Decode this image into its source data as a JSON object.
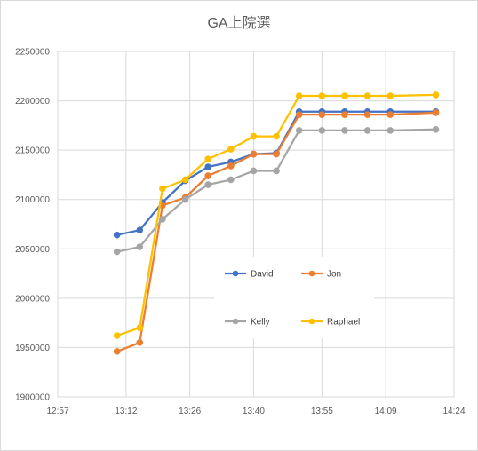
{
  "chart_data": {
    "type": "line",
    "title": "GA上院選",
    "xlabel": "",
    "ylabel": "",
    "x_ticks": [
      "12:57",
      "13:12",
      "13:26",
      "13:40",
      "13:55",
      "14:09",
      "14:24"
    ],
    "y_ticks": [
      "1900000",
      "1950000",
      "2000000",
      "2050000",
      "2100000",
      "2150000",
      "2200000",
      "2250000"
    ],
    "xlim": [
      "12:57",
      "14:24"
    ],
    "ylim": [
      1900000,
      2250000
    ],
    "grid": "horizontal and vertical major gridlines",
    "legend_position": "center",
    "x": [
      "13:10",
      "13:15",
      "13:20",
      "13:25",
      "13:30",
      "13:35",
      "13:40",
      "13:45",
      "13:50",
      "13:55",
      "14:00",
      "14:05",
      "14:10",
      "14:20"
    ],
    "series": [
      {
        "name": "David",
        "color": "#4472c4",
        "values": [
          2064000,
          2069000,
          2097000,
          2119000,
          2133000,
          2138000,
          2146000,
          2147000,
          2189000,
          2189000,
          2189000,
          2189000,
          2189000,
          2189000
        ]
      },
      {
        "name": "Jon",
        "color": "#ed7d31",
        "values": [
          1946000,
          1955000,
          2094000,
          2102000,
          2124000,
          2134000,
          2146000,
          2146000,
          2186000,
          2186000,
          2186000,
          2186000,
          2186000,
          2188000
        ]
      },
      {
        "name": "Kelly",
        "color": "#a5a5a5",
        "values": [
          2047000,
          2052000,
          2080000,
          2100000,
          2115000,
          2120000,
          2129000,
          2129000,
          2170000,
          2170000,
          2170000,
          2170000,
          2170000,
          2171000
        ]
      },
      {
        "name": "Raphael",
        "color": "#ffc000",
        "values": [
          1962000,
          1970000,
          2111000,
          2120000,
          2141000,
          2151000,
          2164000,
          2164000,
          2205000,
          2205000,
          2205000,
          2205000,
          2205000,
          2206000
        ]
      }
    ]
  }
}
